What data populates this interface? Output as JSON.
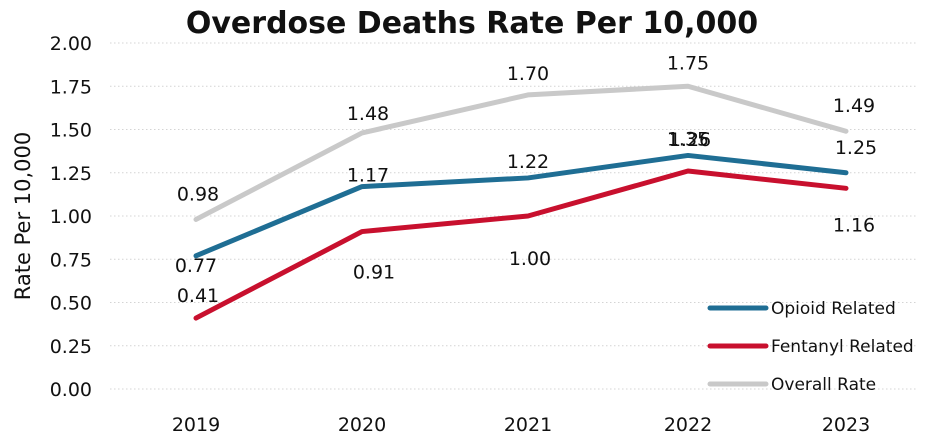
{
  "chart_data": {
    "type": "line",
    "title": "Overdose Deaths Rate Per 10,000",
    "ylabel": "Rate  Per 10,000",
    "xlabel": "",
    "categories": [
      "2019",
      "2020",
      "2021",
      "2022",
      "2023"
    ],
    "ylim": [
      0,
      2
    ],
    "yticks": [
      "0.00",
      "0.25",
      "0.50",
      "0.75",
      "1.00",
      "1.25",
      "1.50",
      "1.75",
      "2.00"
    ],
    "grid": true,
    "legend_position": "bottom-right",
    "series": [
      {
        "name": "Opioid Related",
        "color": "#1f6e94",
        "values": [
          0.77,
          1.17,
          1.22,
          1.35,
          1.25
        ],
        "labels": [
          "0.77",
          "1.17",
          "1.22",
          "1.35",
          "1.25"
        ]
      },
      {
        "name": "Fentanyl Related",
        "color": "#c8102e",
        "values": [
          0.41,
          0.91,
          1.0,
          1.26,
          1.16
        ],
        "labels": [
          "0.41",
          "0.91",
          "1.00",
          "1.26",
          "1.16"
        ]
      },
      {
        "name": "Overall Rate",
        "color": "#c9c9c9",
        "values": [
          0.98,
          1.48,
          1.7,
          1.75,
          1.49
        ],
        "labels": [
          "0.98",
          "1.48",
          "1.70",
          "1.75",
          "1.49"
        ]
      }
    ]
  }
}
